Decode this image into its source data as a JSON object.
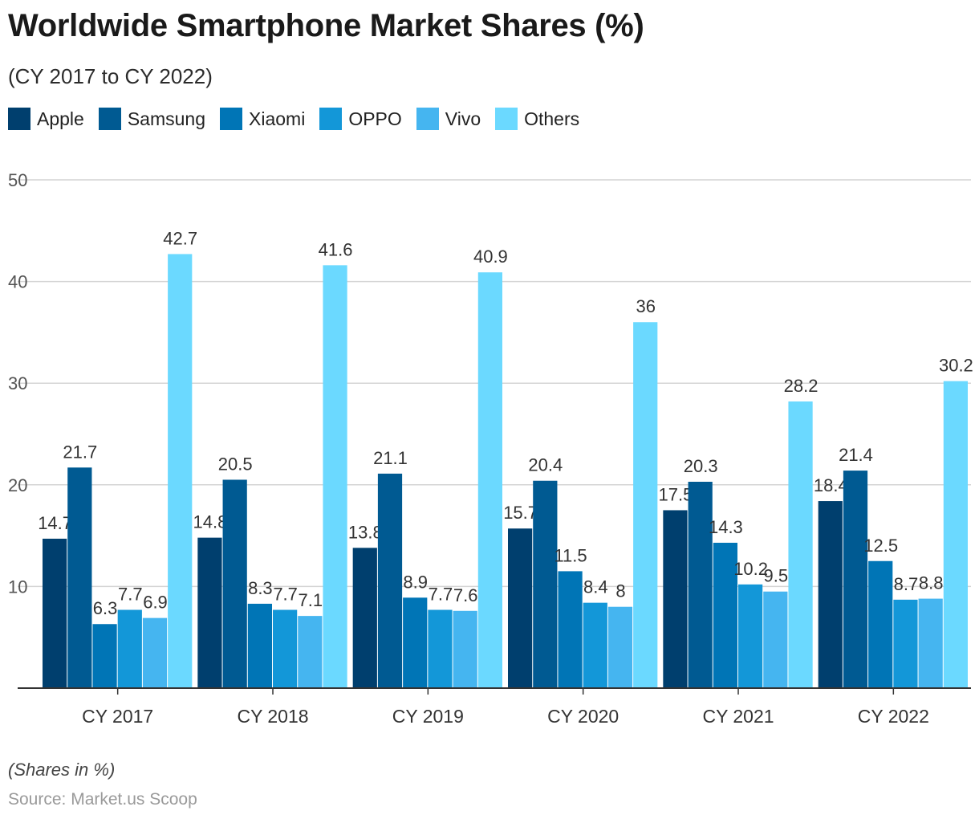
{
  "title": "Worldwide Smartphone Market Shares (%)",
  "subtitle": "(CY 2017 to CY 2022)",
  "note": "(Shares in %)",
  "source": "Source: Market.us Scoop",
  "chart_data": {
    "type": "bar",
    "title": "Worldwide Smartphone Market Shares (%)",
    "xlabel": "",
    "ylabel": "",
    "ylim": [
      0,
      50
    ],
    "yticks": [
      10,
      20,
      30,
      40,
      50
    ],
    "grid": true,
    "legend_position": "top-left",
    "categories": [
      "CY 2017",
      "CY 2018",
      "CY 2019",
      "CY 2020",
      "CY 2021",
      "CY 2022"
    ],
    "series": [
      {
        "name": "Apple",
        "color": "#003f6e",
        "values": [
          14.7,
          14.8,
          13.8,
          15.7,
          17.5,
          18.4
        ]
      },
      {
        "name": "Samsung",
        "color": "#005a92",
        "values": [
          21.7,
          20.5,
          21.1,
          20.4,
          20.3,
          21.4
        ]
      },
      {
        "name": "Xiaomi",
        "color": "#0075b6",
        "values": [
          6.3,
          8.3,
          8.9,
          11.5,
          14.3,
          12.5
        ]
      },
      {
        "name": "OPPO",
        "color": "#1397d8",
        "values": [
          7.7,
          7.7,
          7.7,
          8.4,
          10.2,
          8.7
        ]
      },
      {
        "name": "Vivo",
        "color": "#45b5f0",
        "values": [
          6.9,
          7.1,
          7.6,
          8,
          9.5,
          8.8
        ]
      },
      {
        "name": "Others",
        "color": "#6bd9ff",
        "values": [
          42.7,
          41.6,
          40.9,
          36,
          28.2,
          30.2
        ]
      }
    ]
  }
}
